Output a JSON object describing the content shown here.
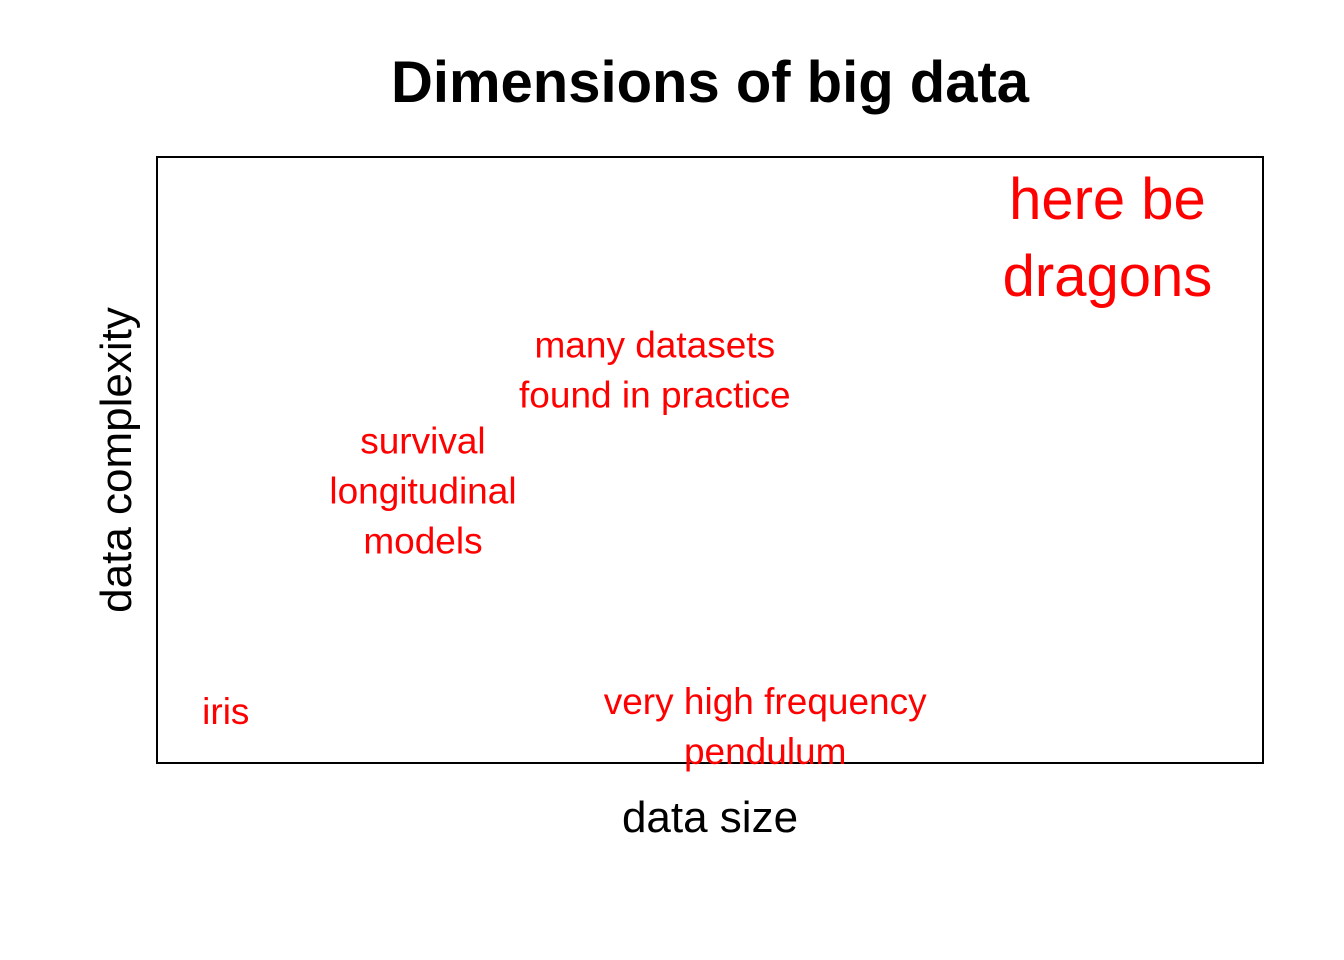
{
  "chart_data": {
    "type": "scatter",
    "title": "Dimensions of big data",
    "xlabel": "data size",
    "ylabel": "data complexity",
    "xlim": [
      0,
      1
    ],
    "ylim": [
      0,
      1
    ],
    "grid": false,
    "axis_ticks": false,
    "annotation_color": "#ff0000",
    "points": [
      {
        "lines": [
          "iris"
        ],
        "x": 0.04,
        "y": 0.085,
        "align": "start",
        "size": "normal"
      },
      {
        "lines": [
          "very high frequency",
          "pendulum"
        ],
        "x": 0.55,
        "y": 0.06,
        "align": "middle",
        "size": "normal"
      },
      {
        "lines": [
          "survival",
          "longitudinal",
          "models"
        ],
        "x": 0.24,
        "y": 0.45,
        "align": "middle",
        "size": "normal"
      },
      {
        "lines": [
          "many datasets",
          "found in practice"
        ],
        "x": 0.45,
        "y": 0.65,
        "align": "middle",
        "size": "normal"
      },
      {
        "lines": [
          "here be",
          "dragons"
        ],
        "x": 0.86,
        "y": 0.87,
        "align": "middle",
        "size": "large"
      }
    ]
  }
}
